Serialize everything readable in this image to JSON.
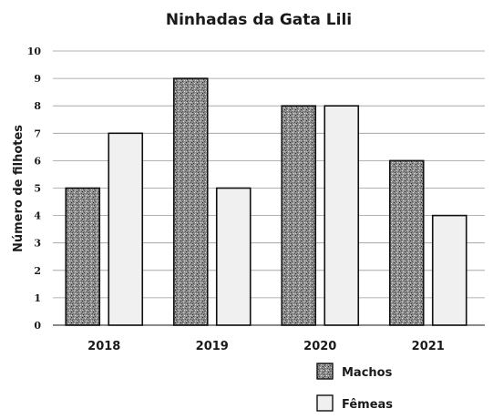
{
  "chart_data": {
    "type": "bar",
    "title": "Ninhadas da Gata Lili",
    "xlabel": "",
    "ylabel": "Número de filhotes",
    "categories": [
      "2018",
      "2019",
      "2020",
      "2021"
    ],
    "yticks": [
      "0",
      "1",
      "2",
      "3",
      "4",
      "5",
      "6",
      "7",
      "8",
      "9",
      "10"
    ],
    "ylim": [
      0,
      10
    ],
    "grid": true,
    "legend_position": "bottom-right",
    "series": [
      {
        "name": "Machos",
        "values": [
          5,
          9,
          8,
          6
        ],
        "fill": "speckled-gray"
      },
      {
        "name": "Fêmeas",
        "values": [
          7,
          5,
          8,
          4
        ],
        "fill": "#f0f0f0"
      }
    ]
  }
}
